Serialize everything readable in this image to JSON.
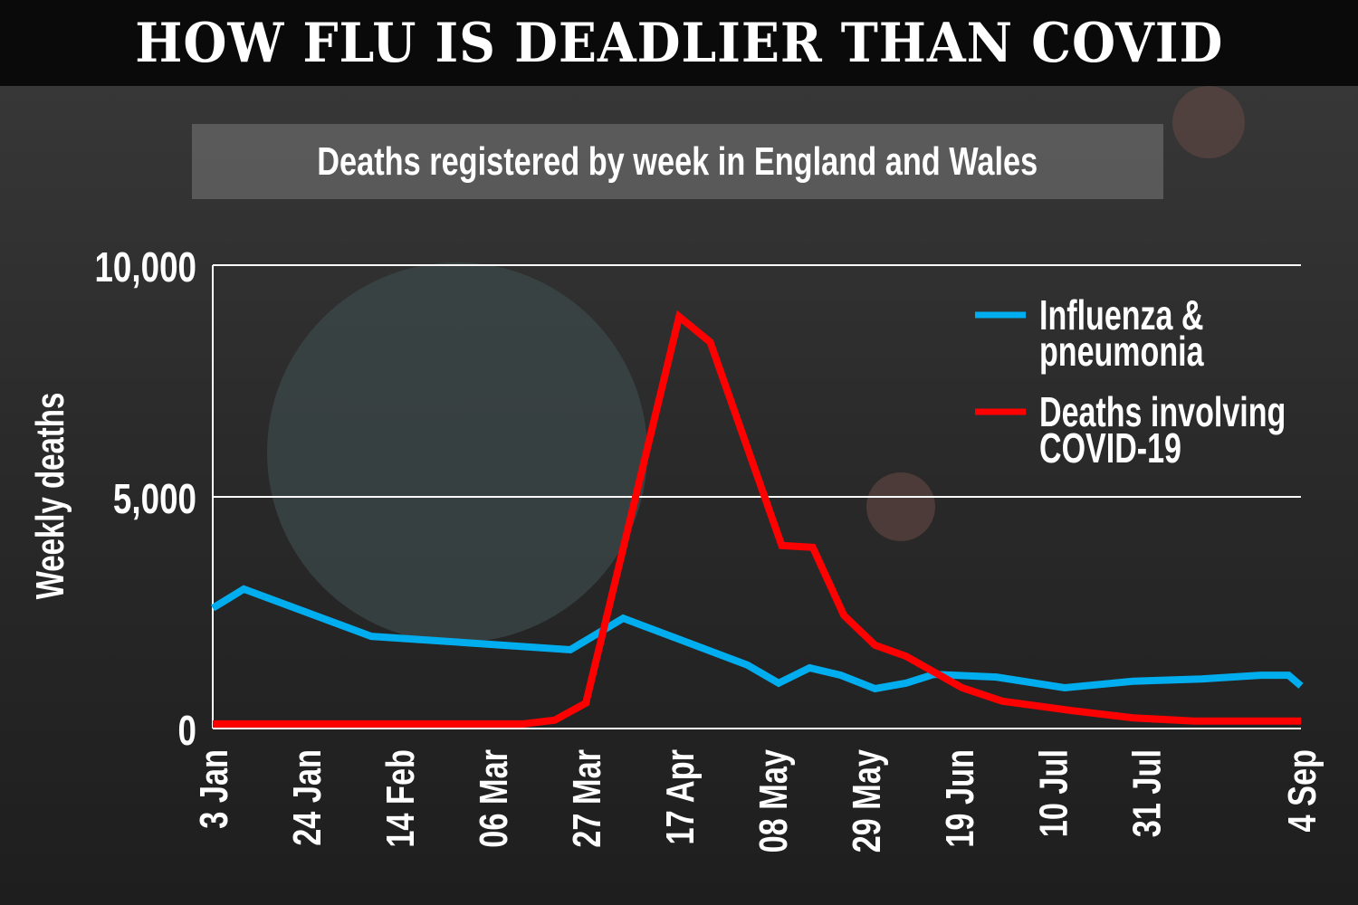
{
  "header": {
    "title": "HOW FLU IS DEADLIER THAN COVID"
  },
  "chart_data": {
    "type": "line",
    "title": "Deaths registered by week in England and Wales",
    "xlabel": "",
    "ylabel": "Weekly deaths",
    "x_unit": "weeks since 3 Jan",
    "xlim": [
      0,
      35
    ],
    "ylim": [
      0,
      10000
    ],
    "yticks": [
      0,
      5000,
      10000
    ],
    "ytick_labels": [
      "0",
      "5,000",
      "10,000"
    ],
    "xticks": [
      0,
      3,
      6,
      9,
      12,
      15,
      18,
      21,
      24,
      27,
      30,
      35
    ],
    "xtick_labels": [
      "3 Jan",
      "24 Jan",
      "14 Feb",
      "06 Mar",
      "27 Mar",
      "17 Apr",
      "08 May",
      "29 May",
      "19 Jun",
      "10 Jul",
      "31 Jul",
      "4 Sep"
    ],
    "grid": "horizontal",
    "legend_position": "top-right",
    "series": [
      {
        "name": "Influenza & pneumonia",
        "legend_lines": [
          "Influenza &",
          "pneumonia"
        ],
        "color": "#00aeef",
        "x": [
          0,
          1,
          5.1,
          11.5,
          13.2,
          17.2,
          18.2,
          19.2,
          20.2,
          21.3,
          22.3,
          23.2,
          25.2,
          27.4,
          29.6,
          31.8,
          33.7,
          34.6,
          35
        ],
        "values": [
          2600,
          3010,
          1990,
          1700,
          2380,
          1370,
          980,
          1310,
          1150,
          860,
          980,
          1170,
          1110,
          880,
          1020,
          1070,
          1150,
          1150,
          920
        ]
      },
      {
        "name": "Deaths involving COVID-19",
        "legend_lines": [
          "Deaths involving",
          "COVID-19"
        ],
        "color": "#ff0000",
        "x": [
          0,
          10,
          11,
          12,
          15,
          16,
          18.3,
          19.3,
          20.3,
          21.3,
          22.3,
          24.1,
          25.4,
          27.6,
          29.6,
          31.6,
          35
        ],
        "values": [
          100,
          100,
          180,
          550,
          8890,
          8340,
          3950,
          3910,
          2440,
          1800,
          1560,
          880,
          590,
          390,
          230,
          160,
          160
        ]
      }
    ]
  }
}
